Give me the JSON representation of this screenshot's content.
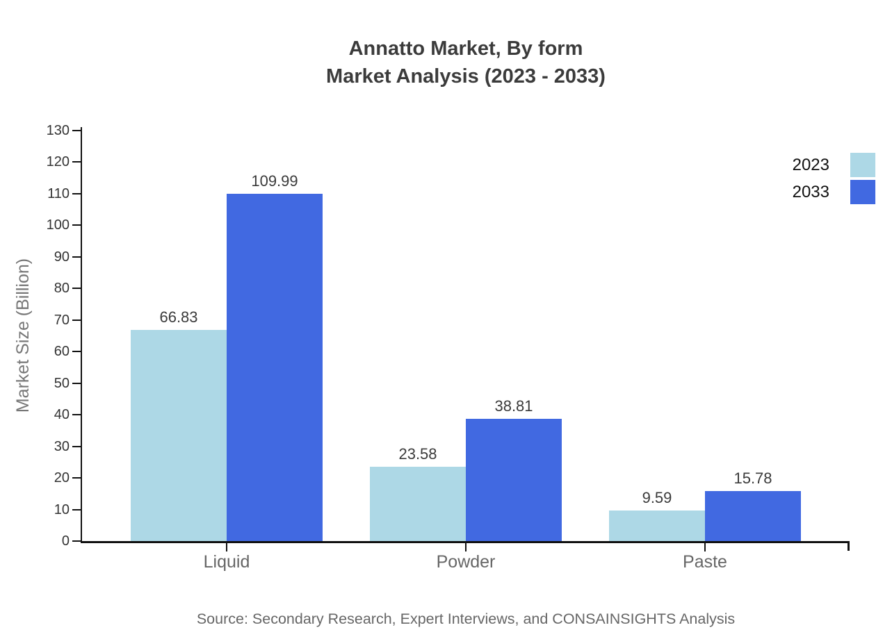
{
  "title": {
    "line1": "Annatto Market, By form",
    "line2": "Market Analysis (2023 - 2033)"
  },
  "chart_data": {
    "type": "bar",
    "title": "Annatto Market, By form Market Analysis (2023 - 2033)",
    "categories": [
      "Liquid",
      "Powder",
      "Paste"
    ],
    "series": [
      {
        "name": "2023",
        "color": "#ADD8E6",
        "values": [
          66.83,
          23.58,
          9.59
        ]
      },
      {
        "name": "2033",
        "color": "#4169E1",
        "values": [
          109.99,
          38.81,
          15.78
        ]
      }
    ],
    "xlabel": "",
    "ylabel": "Market Size (Billion)",
    "ylim": [
      0,
      130
    ],
    "ytick_step": 10,
    "grid": false,
    "legend_position": "top-right",
    "value_labels": true,
    "axis_color": "#111111",
    "text_colors": {
      "title": "#3b3b3b",
      "tick_labels": "#333333",
      "category_labels": "#666666",
      "value_labels": "#3a3a3a"
    }
  },
  "source": "Source: Secondary Research, Expert Interviews, and CONSAINSIGHTS Analysis"
}
